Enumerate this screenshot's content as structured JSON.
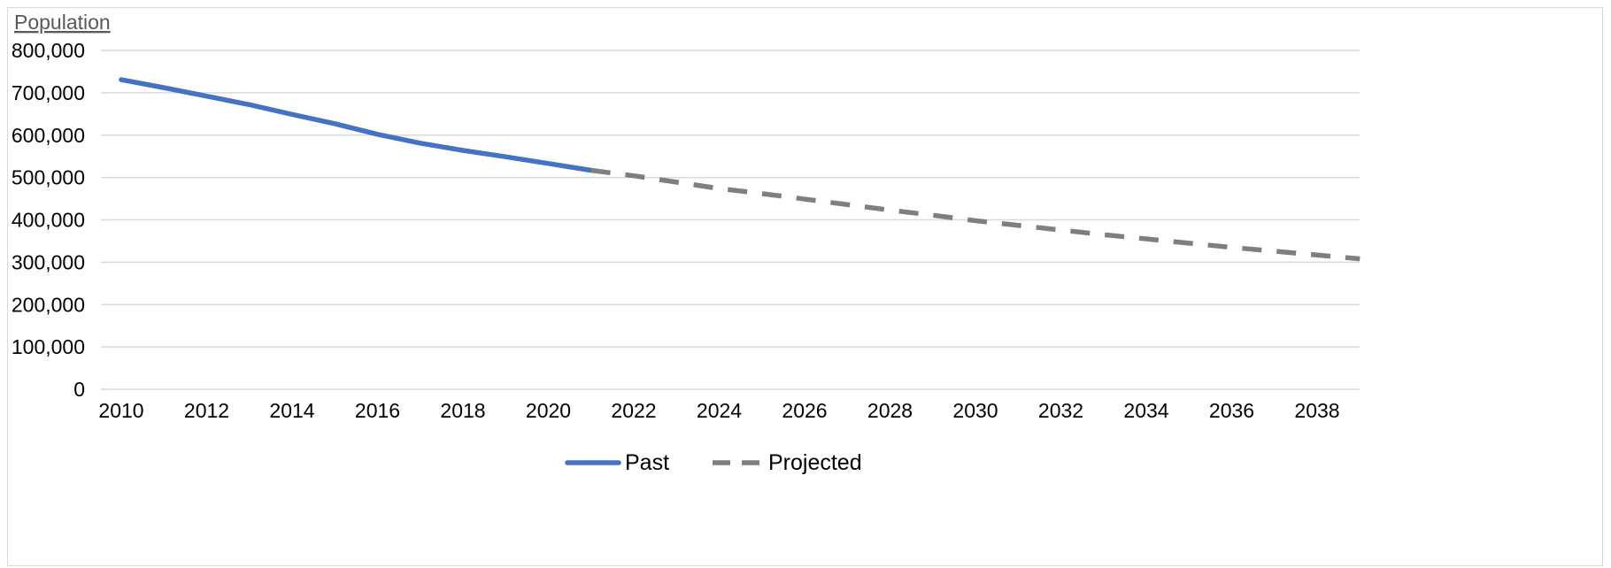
{
  "chart_data": {
    "type": "line",
    "ylabel": "Population",
    "ylim": [
      0,
      800000
    ],
    "yticks": [
      0,
      100000,
      200000,
      300000,
      400000,
      500000,
      600000,
      700000,
      800000
    ],
    "ytick_labels": [
      "0",
      "100,000",
      "200,000",
      "300,000",
      "400,000",
      "500,000",
      "600,000",
      "700,000",
      "800,000"
    ],
    "xlim": [
      2010,
      2040
    ],
    "xticks": [
      2010,
      2012,
      2014,
      2016,
      2018,
      2020,
      2022,
      2024,
      2026,
      2028,
      2030,
      2032,
      2034,
      2036,
      2038
    ],
    "xtick_labels": [
      "2010",
      "2012",
      "2014",
      "2016",
      "2018",
      "2020",
      "2022",
      "2024",
      "2026",
      "2028",
      "2030",
      "2032",
      "2034",
      "2036",
      "2038"
    ],
    "grid": true,
    "legend_position": "bottom",
    "series": [
      {
        "name": "Past",
        "color": "#4472c4",
        "style": "solid",
        "x": [
          2010,
          2011,
          2012,
          2013,
          2014,
          2015,
          2016,
          2017,
          2018,
          2019,
          2020,
          2021
        ],
        "y": [
          731000,
          712000,
          692000,
          672000,
          649000,
          627000,
          602000,
          581000,
          564000,
          549000,
          533000,
          517000
        ]
      },
      {
        "name": "Projected",
        "color": "#7f7f7f",
        "style": "dashed",
        "x": [
          2021,
          2022,
          2023,
          2024,
          2025,
          2026,
          2027,
          2028,
          2029,
          2030,
          2031,
          2032,
          2033,
          2034,
          2035,
          2036,
          2037,
          2038,
          2039
        ],
        "y": [
          517000,
          504000,
          489000,
          474000,
          462000,
          449000,
          436000,
          423000,
          411000,
          398000,
          387000,
          376000,
          365000,
          355000,
          345000,
          335000,
          326000,
          317000,
          308000
        ]
      }
    ]
  }
}
